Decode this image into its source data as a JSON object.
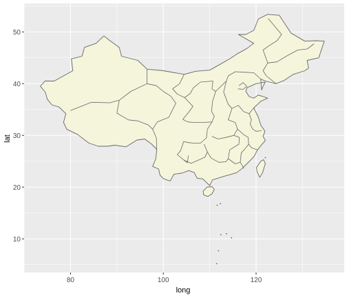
{
  "chart_data": {
    "type": "map",
    "region": "China provinces",
    "xlabel": "long",
    "ylabel": "lat",
    "xlim": [
      70,
      139
    ],
    "ylim": [
      3.5,
      55.5
    ],
    "x_ticks": [
      80,
      100,
      120
    ],
    "y_ticks": [
      10,
      20,
      30,
      40,
      50
    ],
    "x_tick_labels": [
      "80",
      "100",
      "120"
    ],
    "y_tick_labels": [
      "10",
      "20",
      "30",
      "40",
      "50"
    ],
    "grid": true,
    "legend": "none",
    "colors": {
      "panel_background": "#ebebeb",
      "grid_major": "#ffffff",
      "land_fill": "#f5f5dc",
      "border": "#666666"
    },
    "outline": [
      [
        73.5,
        39.5
      ],
      [
        74.5,
        40.5
      ],
      [
        76.5,
        40.5
      ],
      [
        78.5,
        41.5
      ],
      [
        80.5,
        42.5
      ],
      [
        80.2,
        44.8
      ],
      [
        82.5,
        45.3
      ],
      [
        83.0,
        47.0
      ],
      [
        85.5,
        47.8
      ],
      [
        87.2,
        49.2
      ],
      [
        88.5,
        48.3
      ],
      [
        90.5,
        47.0
      ],
      [
        91.0,
        45.3
      ],
      [
        94.5,
        44.5
      ],
      [
        96.5,
        42.8
      ],
      [
        100.0,
        42.5
      ],
      [
        104.5,
        41.8
      ],
      [
        107.0,
        42.4
      ],
      [
        110.0,
        42.6
      ],
      [
        112.0,
        43.6
      ],
      [
        114.5,
        44.9
      ],
      [
        116.0,
        45.8
      ],
      [
        118.0,
        46.8
      ],
      [
        119.5,
        47.8
      ],
      [
        116.2,
        49.5
      ],
      [
        117.8,
        49.5
      ],
      [
        119.5,
        50.3
      ],
      [
        120.5,
        52.5
      ],
      [
        122.5,
        53.4
      ],
      [
        125.0,
        53.2
      ],
      [
        127.5,
        49.8
      ],
      [
        130.5,
        48.2
      ],
      [
        133.0,
        48.3
      ],
      [
        134.7,
        48.2
      ],
      [
        133.5,
        45.0
      ],
      [
        131.0,
        44.5
      ],
      [
        131.3,
        43.0
      ],
      [
        130.5,
        42.5
      ],
      [
        128.0,
        41.8
      ],
      [
        126.0,
        40.6
      ],
      [
        124.3,
        40.0
      ],
      [
        122.0,
        40.5
      ],
      [
        121.0,
        40.9
      ],
      [
        121.2,
        38.8
      ],
      [
        121.5,
        39.5
      ],
      [
        122.0,
        40.3
      ],
      [
        120.0,
        40.0
      ],
      [
        118.0,
        39.2
      ],
      [
        117.8,
        38.5
      ],
      [
        118.5,
        37.5
      ],
      [
        119.5,
        37.2
      ],
      [
        120.5,
        37.8
      ],
      [
        122.5,
        37.2
      ],
      [
        121.0,
        36.6
      ],
      [
        119.5,
        35.3
      ],
      [
        120.5,
        33.5
      ],
      [
        121.0,
        32.0
      ],
      [
        121.9,
        30.8
      ],
      [
        121.5,
        29.8
      ],
      [
        122.0,
        29.0
      ],
      [
        121.0,
        28.0
      ],
      [
        120.3,
        27.2
      ],
      [
        119.6,
        26.0
      ],
      [
        119.0,
        25.4
      ],
      [
        118.0,
        24.5
      ],
      [
        117.0,
        23.6
      ],
      [
        115.8,
        22.8
      ],
      [
        114.3,
        22.4
      ],
      [
        113.5,
        22.2
      ],
      [
        112.0,
        21.8
      ],
      [
        110.6,
        21.4
      ],
      [
        110.0,
        20.3
      ],
      [
        108.5,
        21.6
      ],
      [
        107.3,
        21.7
      ],
      [
        106.7,
        22.8
      ],
      [
        105.5,
        23.2
      ],
      [
        104.0,
        22.7
      ],
      [
        102.3,
        22.5
      ],
      [
        101.5,
        21.2
      ],
      [
        100.1,
        21.6
      ],
      [
        99.3,
        22.3
      ],
      [
        99.0,
        23.5
      ],
      [
        97.7,
        24.0
      ],
      [
        98.4,
        25.5
      ],
      [
        98.6,
        27.3
      ],
      [
        97.5,
        28.3
      ],
      [
        96.0,
        29.3
      ],
      [
        94.3,
        29.1
      ],
      [
        92.0,
        27.8
      ],
      [
        89.5,
        28.1
      ],
      [
        88.0,
        27.9
      ],
      [
        86.0,
        27.9
      ],
      [
        84.0,
        28.5
      ],
      [
        81.5,
        30.2
      ],
      [
        79.2,
        31.2
      ],
      [
        78.5,
        32.5
      ],
      [
        79.0,
        34.2
      ],
      [
        77.5,
        35.5
      ],
      [
        76.0,
        35.9
      ],
      [
        75.0,
        37.0
      ],
      [
        74.6,
        38.3
      ]
    ],
    "hainan": [
      [
        108.6,
        19.2
      ],
      [
        109.4,
        20.0
      ],
      [
        110.5,
        20.1
      ],
      [
        111.0,
        19.6
      ],
      [
        110.5,
        18.7
      ],
      [
        109.6,
        18.2
      ],
      [
        108.7,
        18.5
      ]
    ],
    "taiwan": [
      [
        121.0,
        25.0
      ],
      [
        121.6,
        25.3
      ],
      [
        122.0,
        24.6
      ],
      [
        121.4,
        22.8
      ],
      [
        120.8,
        21.9
      ],
      [
        120.2,
        23.0
      ],
      [
        120.1,
        23.8
      ]
    ],
    "internal_borders": [
      [
        [
          80.0,
          34.8
        ],
        [
          84.5,
          36.4
        ],
        [
          88.5,
          36.3
        ],
        [
          90.5,
          36.8
        ],
        [
          93.0,
          38.5
        ],
        [
          96.5,
          40.0
        ],
        [
          96.5,
          42.8
        ]
      ],
      [
        [
          90.5,
          36.8
        ],
        [
          90.0,
          34.3
        ],
        [
          92.5,
          33.0
        ],
        [
          94.5,
          32.8
        ],
        [
          96.8,
          32.0
        ],
        [
          97.7,
          31.2
        ],
        [
          98.5,
          29.5
        ],
        [
          98.6,
          27.3
        ]
      ],
      [
        [
          96.5,
          40.0
        ],
        [
          98.5,
          39.6
        ],
        [
          100.0,
          38.5
        ],
        [
          101.6,
          37.6
        ],
        [
          102.7,
          36.2
        ],
        [
          102.0,
          35.0
        ],
        [
          101.2,
          33.5
        ],
        [
          98.7,
          32.6
        ],
        [
          97.7,
          31.2
        ]
      ],
      [
        [
          104.5,
          41.8
        ],
        [
          103.5,
          40.0
        ],
        [
          102.0,
          39.0
        ],
        [
          103.0,
          38.0
        ],
        [
          104.6,
          37.3
        ],
        [
          105.8,
          38.1
        ],
        [
          106.5,
          39.2
        ],
        [
          108.0,
          40.3
        ],
        [
          110.7,
          40.5
        ],
        [
          110.5,
          39.0
        ],
        [
          111.3,
          38.5
        ]
      ],
      [
        [
          104.6,
          37.3
        ],
        [
          106.4,
          35.6
        ],
        [
          105.5,
          34.5
        ],
        [
          104.2,
          33.1
        ],
        [
          105.3,
          32.6
        ],
        [
          106.8,
          32.5
        ],
        [
          108.5,
          32.5
        ],
        [
          110.5,
          32.6
        ],
        [
          111.0,
          33.7
        ],
        [
          110.4,
          34.6
        ],
        [
          110.6,
          36.5
        ],
        [
          111.3,
          38.5
        ],
        [
          113.6,
          40.5
        ],
        [
          114.0,
          41.5
        ],
        [
          115.5,
          42.3
        ],
        [
          117.5,
          42.2
        ],
        [
          119.5,
          42.1
        ],
        [
          121.0,
          40.9
        ]
      ],
      [
        [
          113.6,
          40.5
        ],
        [
          113.0,
          38.4
        ],
        [
          114.0,
          36.0
        ],
        [
          114.8,
          35.2
        ],
        [
          116.2,
          35.8
        ],
        [
          117.3,
          34.6
        ],
        [
          118.5,
          34.2
        ],
        [
          119.5,
          35.3
        ]
      ],
      [
        [
          114.8,
          35.2
        ],
        [
          114.0,
          33.0
        ],
        [
          115.5,
          32.5
        ],
        [
          116.0,
          31.2
        ],
        [
          115.2,
          30.0
        ]
      ],
      [
        [
          110.5,
          32.6
        ],
        [
          109.5,
          31.2
        ],
        [
          109.3,
          29.5
        ],
        [
          108.0,
          28.5
        ],
        [
          106.6,
          28.5
        ],
        [
          105.4,
          28.6
        ],
        [
          104.4,
          28.8
        ],
        [
          103.7,
          27.0
        ],
        [
          103.0,
          26.3
        ],
        [
          104.5,
          25.2
        ],
        [
          106.0,
          24.6
        ],
        [
          107.8,
          25.3
        ],
        [
          109.0,
          25.8
        ],
        [
          109.5,
          26.8
        ],
        [
          108.8,
          28.3
        ]
      ],
      [
        [
          110.5,
          29.8
        ],
        [
          111.8,
          29.3
        ],
        [
          113.5,
          29.6
        ],
        [
          115.2,
          30.0
        ],
        [
          116.4,
          29.6
        ],
        [
          116.3,
          28.3
        ],
        [
          114.3,
          27.2
        ],
        [
          114.0,
          25.5
        ],
        [
          113.5,
          24.9
        ],
        [
          112.0,
          24.8
        ],
        [
          110.3,
          25.6
        ],
        [
          109.5,
          26.8
        ]
      ],
      [
        [
          114.0,
          25.5
        ],
        [
          115.5,
          24.5
        ],
        [
          116.6,
          24.8
        ],
        [
          117.4,
          23.6
        ]
      ],
      [
        [
          116.0,
          31.2
        ],
        [
          117.4,
          30.1
        ],
        [
          118.3,
          29.6
        ],
        [
          118.4,
          28.3
        ],
        [
          117.7,
          27.5
        ],
        [
          116.8,
          26.6
        ],
        [
          116.6,
          24.8
        ]
      ],
      [
        [
          118.4,
          28.3
        ],
        [
          119.0,
          27.6
        ],
        [
          120.3,
          27.2
        ]
      ],
      [
        [
          118.5,
          34.2
        ],
        [
          119.0,
          33.0
        ],
        [
          118.7,
          32.2
        ],
        [
          119.3,
          31.2
        ],
        [
          120.0,
          30.8
        ],
        [
          121.2,
          30.9
        ]
      ],
      [
        [
          105.4,
          26.1
        ],
        [
          105.2,
          24.7
        ],
        [
          104.5,
          25.2
        ]
      ],
      [
        [
          124.3,
          40.0
        ],
        [
          122.2,
          41.5
        ],
        [
          121.5,
          42.5
        ],
        [
          122.5,
          44.0
        ],
        [
          124.5,
          44.2
        ],
        [
          126.5,
          45.3
        ],
        [
          129.0,
          46.5
        ],
        [
          131.0,
          46.7
        ],
        [
          132.5,
          47.7
        ]
      ],
      [
        [
          122.5,
          44.0
        ],
        [
          121.5,
          46.5
        ],
        [
          122.6,
          47.2
        ],
        [
          124.5,
          48.3
        ],
        [
          125.5,
          49.5
        ],
        [
          122.6,
          52.6
        ]
      ],
      [
        [
          116.3,
          39.6
        ],
        [
          117.2,
          40.2
        ],
        [
          118.0,
          39.5
        ],
        [
          117.2,
          38.9
        ],
        [
          116.1,
          39.0
        ]
      ]
    ],
    "islands": [
      [
        112.3,
        16.8
      ],
      [
        111.6,
        16.5
      ],
      [
        113.6,
        11.0
      ],
      [
        111.9,
        7.7
      ],
      [
        112.4,
        10.8
      ],
      [
        114.7,
        10.2
      ],
      [
        111.5,
        5.2
      ],
      [
        122.0,
        25.7
      ]
    ]
  }
}
